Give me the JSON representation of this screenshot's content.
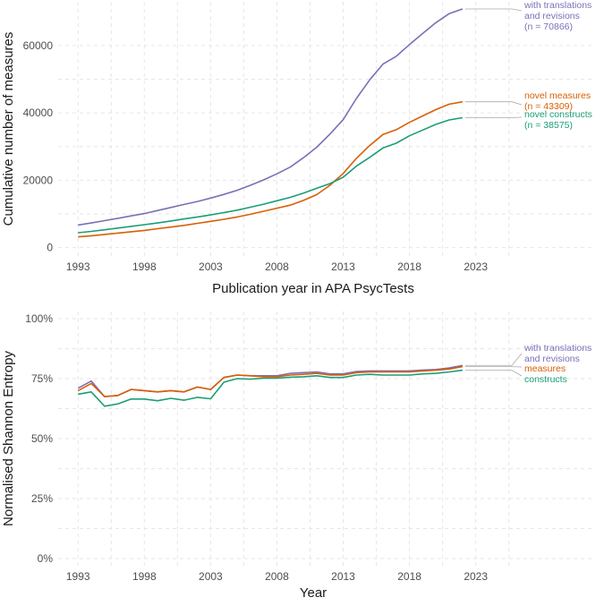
{
  "colors": {
    "translations": "#7b6fb8",
    "measures": "#d95f02",
    "constructs": "#1b9e77",
    "leader": "#aaaaaa"
  },
  "chart_data": [
    {
      "type": "line",
      "title": "",
      "xlabel": "Publication year in APA PsycTests",
      "ylabel": "Cumulative number of measures",
      "xlim": [
        1991.5,
        2032
      ],
      "ylim": [
        -2500,
        73000
      ],
      "x_ticks": [
        1993,
        1998,
        2003,
        2008,
        2013,
        2018,
        2023
      ],
      "x_tick_labels": [
        "1993",
        "1998",
        "2003",
        "2008",
        "2013",
        "2018",
        "2023"
      ],
      "y_ticks": [
        0,
        20000,
        40000,
        60000
      ],
      "y_tick_labels": [
        "0",
        "20000",
        "40000",
        "60000"
      ],
      "grid": true,
      "x": [
        1993,
        1994,
        1995,
        1996,
        1997,
        1998,
        1999,
        2000,
        2001,
        2002,
        2003,
        2004,
        2005,
        2006,
        2007,
        2008,
        2009,
        2010,
        2011,
        2012,
        2013,
        2014,
        2015,
        2016,
        2017,
        2018,
        2019,
        2020,
        2021,
        2022
      ],
      "series": [
        {
          "key": "translations",
          "name": "with translations and revisions",
          "label_lines": [
            "with translations",
            "and revisions",
            "(n = 70866)"
          ],
          "values": [
            6700,
            7300,
            8000,
            8700,
            9400,
            10100,
            11000,
            11900,
            12800,
            13700,
            14700,
            15800,
            17000,
            18500,
            20100,
            21900,
            23900,
            26700,
            29800,
            33700,
            38000,
            44300,
            49800,
            54500,
            56800,
            60300,
            63600,
            66800,
            69500,
            70866
          ]
        },
        {
          "key": "measures",
          "name": "novel measures",
          "label_lines": [
            "novel measures",
            "(n = 43309)"
          ],
          "values": [
            3200,
            3500,
            3900,
            4300,
            4700,
            5100,
            5600,
            6100,
            6600,
            7200,
            7800,
            8400,
            9100,
            9900,
            10800,
            11700,
            12600,
            14000,
            15700,
            18500,
            22000,
            26500,
            30300,
            33600,
            35000,
            37200,
            39100,
            41000,
            42600,
            43309
          ]
        },
        {
          "key": "constructs",
          "name": "novel constructs",
          "label_lines": [
            "novel constructs",
            "(n = 38575)"
          ],
          "values": [
            4400,
            4800,
            5300,
            5800,
            6300,
            6800,
            7300,
            7900,
            8500,
            9100,
            9700,
            10400,
            11100,
            12000,
            12900,
            13900,
            14900,
            16200,
            17600,
            19000,
            20900,
            24200,
            26800,
            29600,
            31000,
            33200,
            34900,
            36600,
            37900,
            38575
          ]
        }
      ]
    },
    {
      "type": "line",
      "title": "",
      "xlabel": "Year",
      "ylabel": "Normalised Shannon Entropy",
      "xlim": [
        1991.5,
        2032
      ],
      "ylim": [
        -0.03,
        1.03
      ],
      "x_ticks": [
        1993,
        1998,
        2003,
        2008,
        2013,
        2018,
        2023
      ],
      "x_tick_labels": [
        "1993",
        "1998",
        "2003",
        "2008",
        "2013",
        "2018",
        "2023"
      ],
      "y_ticks": [
        0,
        0.25,
        0.5,
        0.75,
        1.0
      ],
      "y_tick_labels": [
        "0%",
        "25%",
        "50%",
        "75%",
        "100%"
      ],
      "grid": true,
      "x": [
        1993,
        1994,
        1995,
        1996,
        1997,
        1998,
        1999,
        2000,
        2001,
        2002,
        2003,
        2004,
        2005,
        2006,
        2007,
        2008,
        2009,
        2010,
        2011,
        2012,
        2013,
        2014,
        2015,
        2016,
        2017,
        2018,
        2019,
        2020,
        2021,
        2022
      ],
      "series": [
        {
          "key": "translations",
          "name": "with translations and revisions",
          "label_lines": [
            "with translations",
            "and revisions"
          ],
          "values": [
            0.71,
            0.74,
            0.675,
            0.68,
            0.705,
            0.7,
            0.695,
            0.7,
            0.695,
            0.715,
            0.705,
            0.755,
            0.765,
            0.762,
            0.762,
            0.762,
            0.772,
            0.775,
            0.778,
            0.77,
            0.77,
            0.78,
            0.782,
            0.782,
            0.782,
            0.782,
            0.786,
            0.788,
            0.795,
            0.805
          ]
        },
        {
          "key": "measures",
          "name": "measures",
          "label_lines": [
            "measures"
          ],
          "values": [
            0.7,
            0.73,
            0.675,
            0.68,
            0.705,
            0.7,
            0.695,
            0.7,
            0.695,
            0.715,
            0.705,
            0.755,
            0.765,
            0.762,
            0.758,
            0.758,
            0.765,
            0.768,
            0.772,
            0.765,
            0.765,
            0.775,
            0.778,
            0.778,
            0.778,
            0.778,
            0.782,
            0.785,
            0.79,
            0.8
          ]
        },
        {
          "key": "constructs",
          "name": "constructs",
          "label_lines": [
            "constructs"
          ],
          "values": [
            0.685,
            0.695,
            0.635,
            0.645,
            0.665,
            0.665,
            0.658,
            0.668,
            0.66,
            0.672,
            0.666,
            0.735,
            0.75,
            0.748,
            0.752,
            0.752,
            0.756,
            0.758,
            0.762,
            0.755,
            0.755,
            0.765,
            0.768,
            0.765,
            0.765,
            0.765,
            0.77,
            0.772,
            0.778,
            0.785
          ]
        }
      ]
    }
  ]
}
